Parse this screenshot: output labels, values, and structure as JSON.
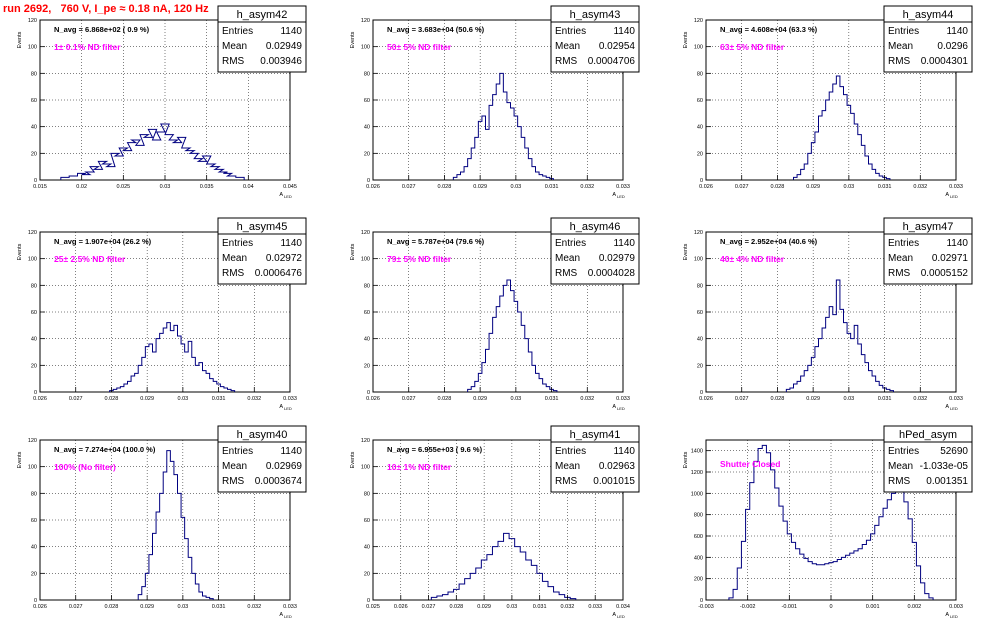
{
  "page_title": "run 2692,   760 V, I_pe ≈ 0.18 nA, 120 Hz",
  "colors": {
    "hist": "#000080",
    "annotation": "#ff00ff",
    "title": "#ff0000",
    "grid": "#000000"
  },
  "ylabel": "Events",
  "xlabel_main": "A",
  "xlabel_sub": "LED",
  "stat_labels": {
    "entries": "Entries",
    "mean": "Mean",
    "rms": "RMS"
  },
  "chart_data": [
    {
      "type": "bar",
      "name": "h_asym42",
      "navg": "N_avg = 6.868e+02 ( 0.9 %)",
      "filter": "1± 0.1% ND filter",
      "entries": "1140",
      "mean": "0.02949",
      "rms": "0.003946",
      "xlim": [
        0.015,
        0.045
      ],
      "xticks": [
        "0.015",
        "0.02",
        "0.025",
        "0.03",
        "0.035",
        "0.04",
        "0.045"
      ],
      "ylim": [
        0,
        120
      ],
      "yticks": [
        "0",
        "20",
        "40",
        "60",
        "80",
        "100",
        "120"
      ],
      "x": [
        0.018,
        0.019,
        0.02,
        0.0205,
        0.021,
        0.0215,
        0.022,
        0.0225,
        0.023,
        0.0235,
        0.024,
        0.0245,
        0.025,
        0.0255,
        0.026,
        0.0265,
        0.027,
        0.0275,
        0.028,
        0.0285,
        0.029,
        0.0295,
        0.03,
        0.0305,
        0.031,
        0.0315,
        0.032,
        0.0325,
        0.033,
        0.0335,
        0.034,
        0.0345,
        0.035,
        0.0355,
        0.036,
        0.0365,
        0.037,
        0.0375,
        0.038,
        0.039
      ],
      "values": [
        2,
        3,
        5,
        4,
        6,
        10,
        8,
        14,
        12,
        10,
        20,
        18,
        24,
        22,
        28,
        30,
        26,
        34,
        32,
        38,
        30,
        36,
        42,
        34,
        30,
        28,
        32,
        24,
        22,
        20,
        16,
        14,
        18,
        12,
        10,
        8,
        6,
        5,
        3,
        2
      ]
    },
    {
      "type": "bar",
      "name": "h_asym43",
      "navg": "N_avg = 3.683e+04 (50.6 %)",
      "filter": "50± 5% ND filter",
      "entries": "1140",
      "mean": "0.02954",
      "rms": "0.0004706",
      "xlim": [
        0.026,
        0.033
      ],
      "xticks": [
        "0.026",
        "0.027",
        "0.028",
        "0.029",
        "0.03",
        "0.031",
        "0.032",
        "0.033"
      ],
      "ylim": [
        0,
        120
      ],
      "yticks": [
        "0",
        "20",
        "40",
        "60",
        "80",
        "100",
        "120"
      ],
      "x": [
        0.0283,
        0.0284,
        0.0285,
        0.0286,
        0.0287,
        0.0288,
        0.0289,
        0.029,
        0.0291,
        0.0292,
        0.0293,
        0.0294,
        0.0295,
        0.0296,
        0.0297,
        0.0298,
        0.0299,
        0.03,
        0.0301,
        0.0302,
        0.0303,
        0.0304,
        0.0305,
        0.0306,
        0.0307,
        0.0308,
        0.0309,
        0.031
      ],
      "values": [
        2,
        4,
        6,
        10,
        16,
        24,
        32,
        44,
        48,
        38,
        56,
        64,
        72,
        80,
        66,
        58,
        54,
        48,
        40,
        32,
        24,
        16,
        10,
        6,
        4,
        3,
        2,
        1
      ]
    },
    {
      "type": "bar",
      "name": "h_asym44",
      "navg": "N_avg = 4.608e+04 (63.3 %)",
      "filter": "63± 5% ND filter",
      "entries": "1140",
      "mean": "0.0296",
      "rms": "0.0004301",
      "xlim": [
        0.026,
        0.033
      ],
      "xticks": [
        "0.026",
        "0.027",
        "0.028",
        "0.029",
        "0.03",
        "0.031",
        "0.032",
        "0.033"
      ],
      "ylim": [
        0,
        120
      ],
      "yticks": [
        "0",
        "20",
        "40",
        "60",
        "80",
        "100",
        "120"
      ],
      "x": [
        0.0285,
        0.0286,
        0.0287,
        0.0288,
        0.0289,
        0.029,
        0.0291,
        0.0292,
        0.0293,
        0.0294,
        0.0295,
        0.0296,
        0.0297,
        0.0298,
        0.0299,
        0.03,
        0.0301,
        0.0302,
        0.0303,
        0.0304,
        0.0305,
        0.0306,
        0.0307,
        0.0308,
        0.0309,
        0.031,
        0.0311
      ],
      "values": [
        2,
        4,
        8,
        12,
        20,
        28,
        36,
        48,
        52,
        60,
        66,
        72,
        78,
        70,
        64,
        56,
        50,
        42,
        34,
        26,
        18,
        12,
        8,
        5,
        3,
        2,
        1
      ]
    },
    {
      "type": "bar",
      "name": "h_asym45",
      "navg": "N_avg = 1.907e+04 (26.2 %)",
      "filter": "25± 2.5% ND filter",
      "entries": "1140",
      "mean": "0.02972",
      "rms": "0.0006476",
      "xlim": [
        0.026,
        0.033
      ],
      "xticks": [
        "0.026",
        "0.027",
        "0.028",
        "0.029",
        "0.03",
        "0.031",
        "0.032",
        "0.033"
      ],
      "ylim": [
        0,
        120
      ],
      "yticks": [
        "0",
        "20",
        "40",
        "60",
        "80",
        "100",
        "120"
      ],
      "x": [
        0.028,
        0.0281,
        0.0282,
        0.0283,
        0.0284,
        0.0285,
        0.0286,
        0.0287,
        0.0288,
        0.0289,
        0.029,
        0.0291,
        0.0292,
        0.0293,
        0.0294,
        0.0295,
        0.0296,
        0.0297,
        0.0298,
        0.0299,
        0.03,
        0.0301,
        0.0302,
        0.0303,
        0.0304,
        0.0305,
        0.0306,
        0.0307,
        0.0308,
        0.0309,
        0.031,
        0.0311,
        0.0312,
        0.0313,
        0.0314
      ],
      "values": [
        1,
        2,
        3,
        4,
        6,
        8,
        12,
        14,
        20,
        26,
        34,
        36,
        30,
        40,
        44,
        48,
        52,
        46,
        50,
        42,
        36,
        30,
        38,
        26,
        20,
        22,
        16,
        14,
        10,
        8,
        6,
        4,
        3,
        2,
        1
      ]
    },
    {
      "type": "bar",
      "name": "h_asym46",
      "navg": "N_avg = 5.787e+04 (79.6 %)",
      "filter": "79± 5% ND filter",
      "entries": "1140",
      "mean": "0.02979",
      "rms": "0.0004028",
      "xlim": [
        0.026,
        0.033
      ],
      "xticks": [
        "0.026",
        "0.027",
        "0.028",
        "0.029",
        "0.03",
        "0.031",
        "0.032",
        "0.033"
      ],
      "ylim": [
        0,
        120
      ],
      "yticks": [
        "0",
        "20",
        "40",
        "60",
        "80",
        "100",
        "120"
      ],
      "x": [
        0.0287,
        0.0288,
        0.0289,
        0.029,
        0.0291,
        0.0292,
        0.0293,
        0.0294,
        0.0295,
        0.0296,
        0.0297,
        0.0298,
        0.0299,
        0.03,
        0.0301,
        0.0302,
        0.0303,
        0.0304,
        0.0305,
        0.0306,
        0.0307,
        0.0308,
        0.0309,
        0.031,
        0.0311
      ],
      "values": [
        2,
        4,
        8,
        14,
        22,
        32,
        44,
        56,
        64,
        72,
        80,
        84,
        76,
        68,
        60,
        50,
        40,
        30,
        20,
        14,
        10,
        6,
        4,
        2,
        1
      ]
    },
    {
      "type": "bar",
      "name": "h_asym47",
      "navg": "N_avg = 2.952e+04 (40.6 %)",
      "filter": "40± 4% ND filter",
      "entries": "1140",
      "mean": "0.02971",
      "rms": "0.0005152",
      "xlim": [
        0.026,
        0.033
      ],
      "xticks": [
        "0.026",
        "0.027",
        "0.028",
        "0.029",
        "0.03",
        "0.031",
        "0.032",
        "0.033"
      ],
      "ylim": [
        0,
        120
      ],
      "yticks": [
        "0",
        "20",
        "40",
        "60",
        "80",
        "100",
        "120"
      ],
      "x": [
        0.0283,
        0.0284,
        0.0285,
        0.0286,
        0.0287,
        0.0288,
        0.0289,
        0.029,
        0.0291,
        0.0292,
        0.0293,
        0.0294,
        0.0295,
        0.0296,
        0.0297,
        0.0298,
        0.0299,
        0.03,
        0.0301,
        0.0302,
        0.0303,
        0.0304,
        0.0305,
        0.0306,
        0.0307,
        0.0308,
        0.0309,
        0.031,
        0.0311,
        0.0312
      ],
      "values": [
        2,
        3,
        6,
        8,
        12,
        16,
        20,
        26,
        34,
        40,
        48,
        56,
        64,
        58,
        84,
        62,
        52,
        44,
        40,
        50,
        36,
        28,
        22,
        16,
        12,
        8,
        5,
        3,
        2,
        1
      ]
    },
    {
      "type": "bar",
      "name": "h_asym40",
      "navg": "N_avg = 7.274e+04 (100.0 %)",
      "filter": "100% (No filter)",
      "entries": "1140",
      "mean": "0.02969",
      "rms": "0.0003674",
      "xlim": [
        0.026,
        0.033
      ],
      "xticks": [
        "0.026",
        "0.027",
        "0.028",
        "0.029",
        "0.03",
        "0.031",
        "0.032",
        "0.033"
      ],
      "ylim": [
        0,
        120
      ],
      "yticks": [
        "0",
        "20",
        "40",
        "60",
        "80",
        "100",
        "120"
      ],
      "x": [
        0.0288,
        0.0289,
        0.029,
        0.0291,
        0.0292,
        0.0293,
        0.0294,
        0.0295,
        0.0296,
        0.0297,
        0.0298,
        0.0299,
        0.03,
        0.0301,
        0.0302,
        0.0303,
        0.0304,
        0.0305,
        0.0306,
        0.0307,
        0.0308
      ],
      "values": [
        4,
        10,
        20,
        34,
        50,
        66,
        80,
        96,
        112,
        104,
        94,
        80,
        62,
        46,
        32,
        20,
        12,
        6,
        3,
        2,
        1
      ]
    },
    {
      "type": "bar",
      "name": "h_asym41",
      "navg": "N_avg = 6.955e+03 ( 9.6 %)",
      "filter": "10± 1% ND filter",
      "entries": "1140",
      "mean": "0.02963",
      "rms": "0.001015",
      "xlim": [
        0.025,
        0.034
      ],
      "xticks": [
        "0.025",
        "0.026",
        "0.027",
        "0.028",
        "0.029",
        "0.03",
        "0.031",
        "0.032",
        "0.033",
        "0.034"
      ],
      "ylim": [
        0,
        120
      ],
      "yticks": [
        "0",
        "20",
        "40",
        "60",
        "80",
        "100",
        "120"
      ],
      "x": [
        0.0272,
        0.0274,
        0.0276,
        0.0278,
        0.028,
        0.0282,
        0.0284,
        0.0286,
        0.0288,
        0.029,
        0.0292,
        0.0294,
        0.0296,
        0.0298,
        0.03,
        0.0302,
        0.0304,
        0.0306,
        0.0308,
        0.031,
        0.0312,
        0.0314,
        0.0316,
        0.0318,
        0.032,
        0.0322
      ],
      "values": [
        2,
        3,
        4,
        6,
        8,
        12,
        16,
        20,
        24,
        30,
        34,
        40,
        44,
        50,
        46,
        40,
        36,
        30,
        26,
        20,
        14,
        10,
        6,
        4,
        2,
        1
      ]
    },
    {
      "type": "bar",
      "name": "hPed_asym",
      "navg": "",
      "filter": "Shutter Closed",
      "entries": "52690",
      "mean": "-1.033e-05",
      "rms": "0.001351",
      "xlim": [
        -0.003,
        0.003
      ],
      "xticks": [
        "-0.003",
        "-0.002",
        "-0.001",
        "0",
        "0.001",
        "0.002",
        "0.003"
      ],
      "ylim": [
        0,
        1500
      ],
      "yticks": [
        "0",
        "200",
        "400",
        "600",
        "800",
        "1000",
        "1200",
        "1400"
      ],
      "x": [
        -0.0024,
        -0.0023,
        -0.0022,
        -0.0021,
        -0.002,
        -0.0019,
        -0.0018,
        -0.0017,
        -0.0016,
        -0.0015,
        -0.0014,
        -0.0013,
        -0.0012,
        -0.0011,
        -0.001,
        -0.0009,
        -0.0008,
        -0.0007,
        -0.0006,
        -0.0005,
        -0.0004,
        -0.0003,
        -0.0002,
        -0.0001,
        0.0,
        0.0001,
        0.0002,
        0.0003,
        0.0004,
        0.0005,
        0.0006,
        0.0007,
        0.0008,
        0.0009,
        0.001,
        0.0011,
        0.0012,
        0.0013,
        0.0014,
        0.0015,
        0.0016,
        0.0017,
        0.0018,
        0.0019,
        0.002,
        0.0021,
        0.0022,
        0.0023,
        0.0024
      ],
      "values": [
        20,
        100,
        300,
        550,
        850,
        1100,
        1300,
        1420,
        1450,
        1380,
        1220,
        1050,
        880,
        740,
        620,
        540,
        480,
        430,
        390,
        360,
        340,
        330,
        330,
        340,
        350,
        360,
        380,
        400,
        420,
        440,
        460,
        480,
        520,
        560,
        620,
        700,
        780,
        860,
        940,
        1000,
        1050,
        1020,
        920,
        760,
        540,
        320,
        160,
        60,
        20
      ]
    }
  ]
}
